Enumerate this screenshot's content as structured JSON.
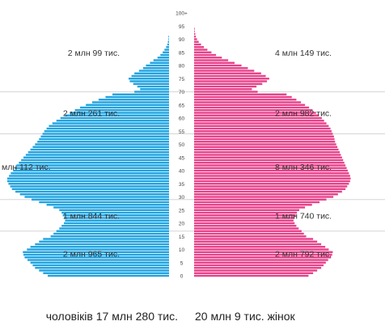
{
  "chart_data": {
    "type": "bar",
    "orientation": "population-pyramid",
    "age_ticks": [
      "0",
      "5",
      "10",
      "15",
      "20",
      "25",
      "30",
      "35",
      "40",
      "45",
      "50",
      "55",
      "60",
      "65",
      "70",
      "75",
      "80",
      "85",
      "90",
      "95",
      "100+"
    ],
    "age_range": [
      0,
      100
    ],
    "series": [
      {
        "name": "чоловіків",
        "color": "#1fa3e0",
        "side": "left",
        "values": [
          0.21,
          0.218,
          0.225,
          0.232,
          0.236,
          0.24,
          0.245,
          0.25,
          0.252,
          0.253,
          0.246,
          0.24,
          0.232,
          0.225,
          0.218,
          0.205,
          0.2,
          0.195,
          0.19,
          0.186,
          0.182,
          0.18,
          0.182,
          0.184,
          0.186,
          0.19,
          0.2,
          0.212,
          0.225,
          0.238,
          0.25,
          0.258,
          0.266,
          0.272,
          0.275,
          0.278,
          0.28,
          0.28,
          0.277,
          0.274,
          0.27,
          0.267,
          0.264,
          0.26,
          0.256,
          0.252,
          0.248,
          0.244,
          0.24,
          0.236,
          0.232,
          0.228,
          0.225,
          0.222,
          0.219,
          0.216,
          0.212,
          0.208,
          0.202,
          0.195,
          0.188,
          0.18,
          0.172,
          0.163,
          0.154,
          0.144,
          0.133,
          0.122,
          0.11,
          0.098,
          0.06,
          0.05,
          0.055,
          0.062,
          0.068,
          0.07,
          0.065,
          0.06,
          0.052,
          0.045,
          0.04,
          0.033,
          0.027,
          0.02,
          0.015,
          0.011,
          0.008,
          0.005,
          0.003,
          0.002,
          0.001,
          0.001,
          0.0,
          0.0,
          0.0,
          0.0,
          0.0,
          0.0,
          0.0,
          0.0,
          0.0
        ]
      },
      {
        "name": "жінок",
        "color": "#e8408a",
        "side": "right",
        "values": [
          0.198,
          0.206,
          0.213,
          0.22,
          0.224,
          0.228,
          0.232,
          0.237,
          0.239,
          0.24,
          0.233,
          0.227,
          0.22,
          0.213,
          0.206,
          0.194,
          0.19,
          0.186,
          0.181,
          0.177,
          0.174,
          0.172,
          0.174,
          0.176,
          0.178,
          0.182,
          0.192,
          0.204,
          0.217,
          0.229,
          0.241,
          0.249,
          0.256,
          0.262,
          0.265,
          0.268,
          0.27,
          0.271,
          0.27,
          0.268,
          0.266,
          0.264,
          0.262,
          0.26,
          0.258,
          0.256,
          0.254,
          0.252,
          0.25,
          0.248,
          0.246,
          0.244,
          0.243,
          0.242,
          0.24,
          0.238,
          0.236,
          0.233,
          0.229,
          0.225,
          0.221,
          0.216,
          0.211,
          0.205,
          0.199,
          0.192,
          0.185,
          0.177,
          0.169,
          0.16,
          0.11,
          0.1,
          0.108,
          0.118,
          0.126,
          0.13,
          0.124,
          0.116,
          0.104,
          0.093,
          0.082,
          0.07,
          0.059,
          0.048,
          0.038,
          0.03,
          0.023,
          0.017,
          0.012,
          0.008,
          0.005,
          0.003,
          0.002,
          0.001,
          0.001,
          0.0,
          0.0,
          0.0,
          0.0,
          0.0,
          0.0
        ]
      }
    ],
    "age_groups": [
      {
        "from": 0,
        "to": 17,
        "men": "2 млн 965 тис.",
        "women": "2 млн 792 тис."
      },
      {
        "from": 17,
        "to": 29,
        "men": "1 млн 844 тис.",
        "women": "1 млн 740 тис."
      },
      {
        "from": 29,
        "to": 54,
        "men": "млн 112 тис.",
        "women": "8 млн 346 тис."
      },
      {
        "from": 54,
        "to": 70,
        "men": "2 млн 261 тис.",
        "women": "2 млн 982 тис."
      },
      {
        "from": 70,
        "to": 100,
        "men": "2 млн 99 тис.",
        "women": "4 млн 149 тис."
      }
    ],
    "totals": {
      "men": "чоловіків 17 млн 280 тис.",
      "women": "20 млн 9 тис. жінок"
    }
  }
}
